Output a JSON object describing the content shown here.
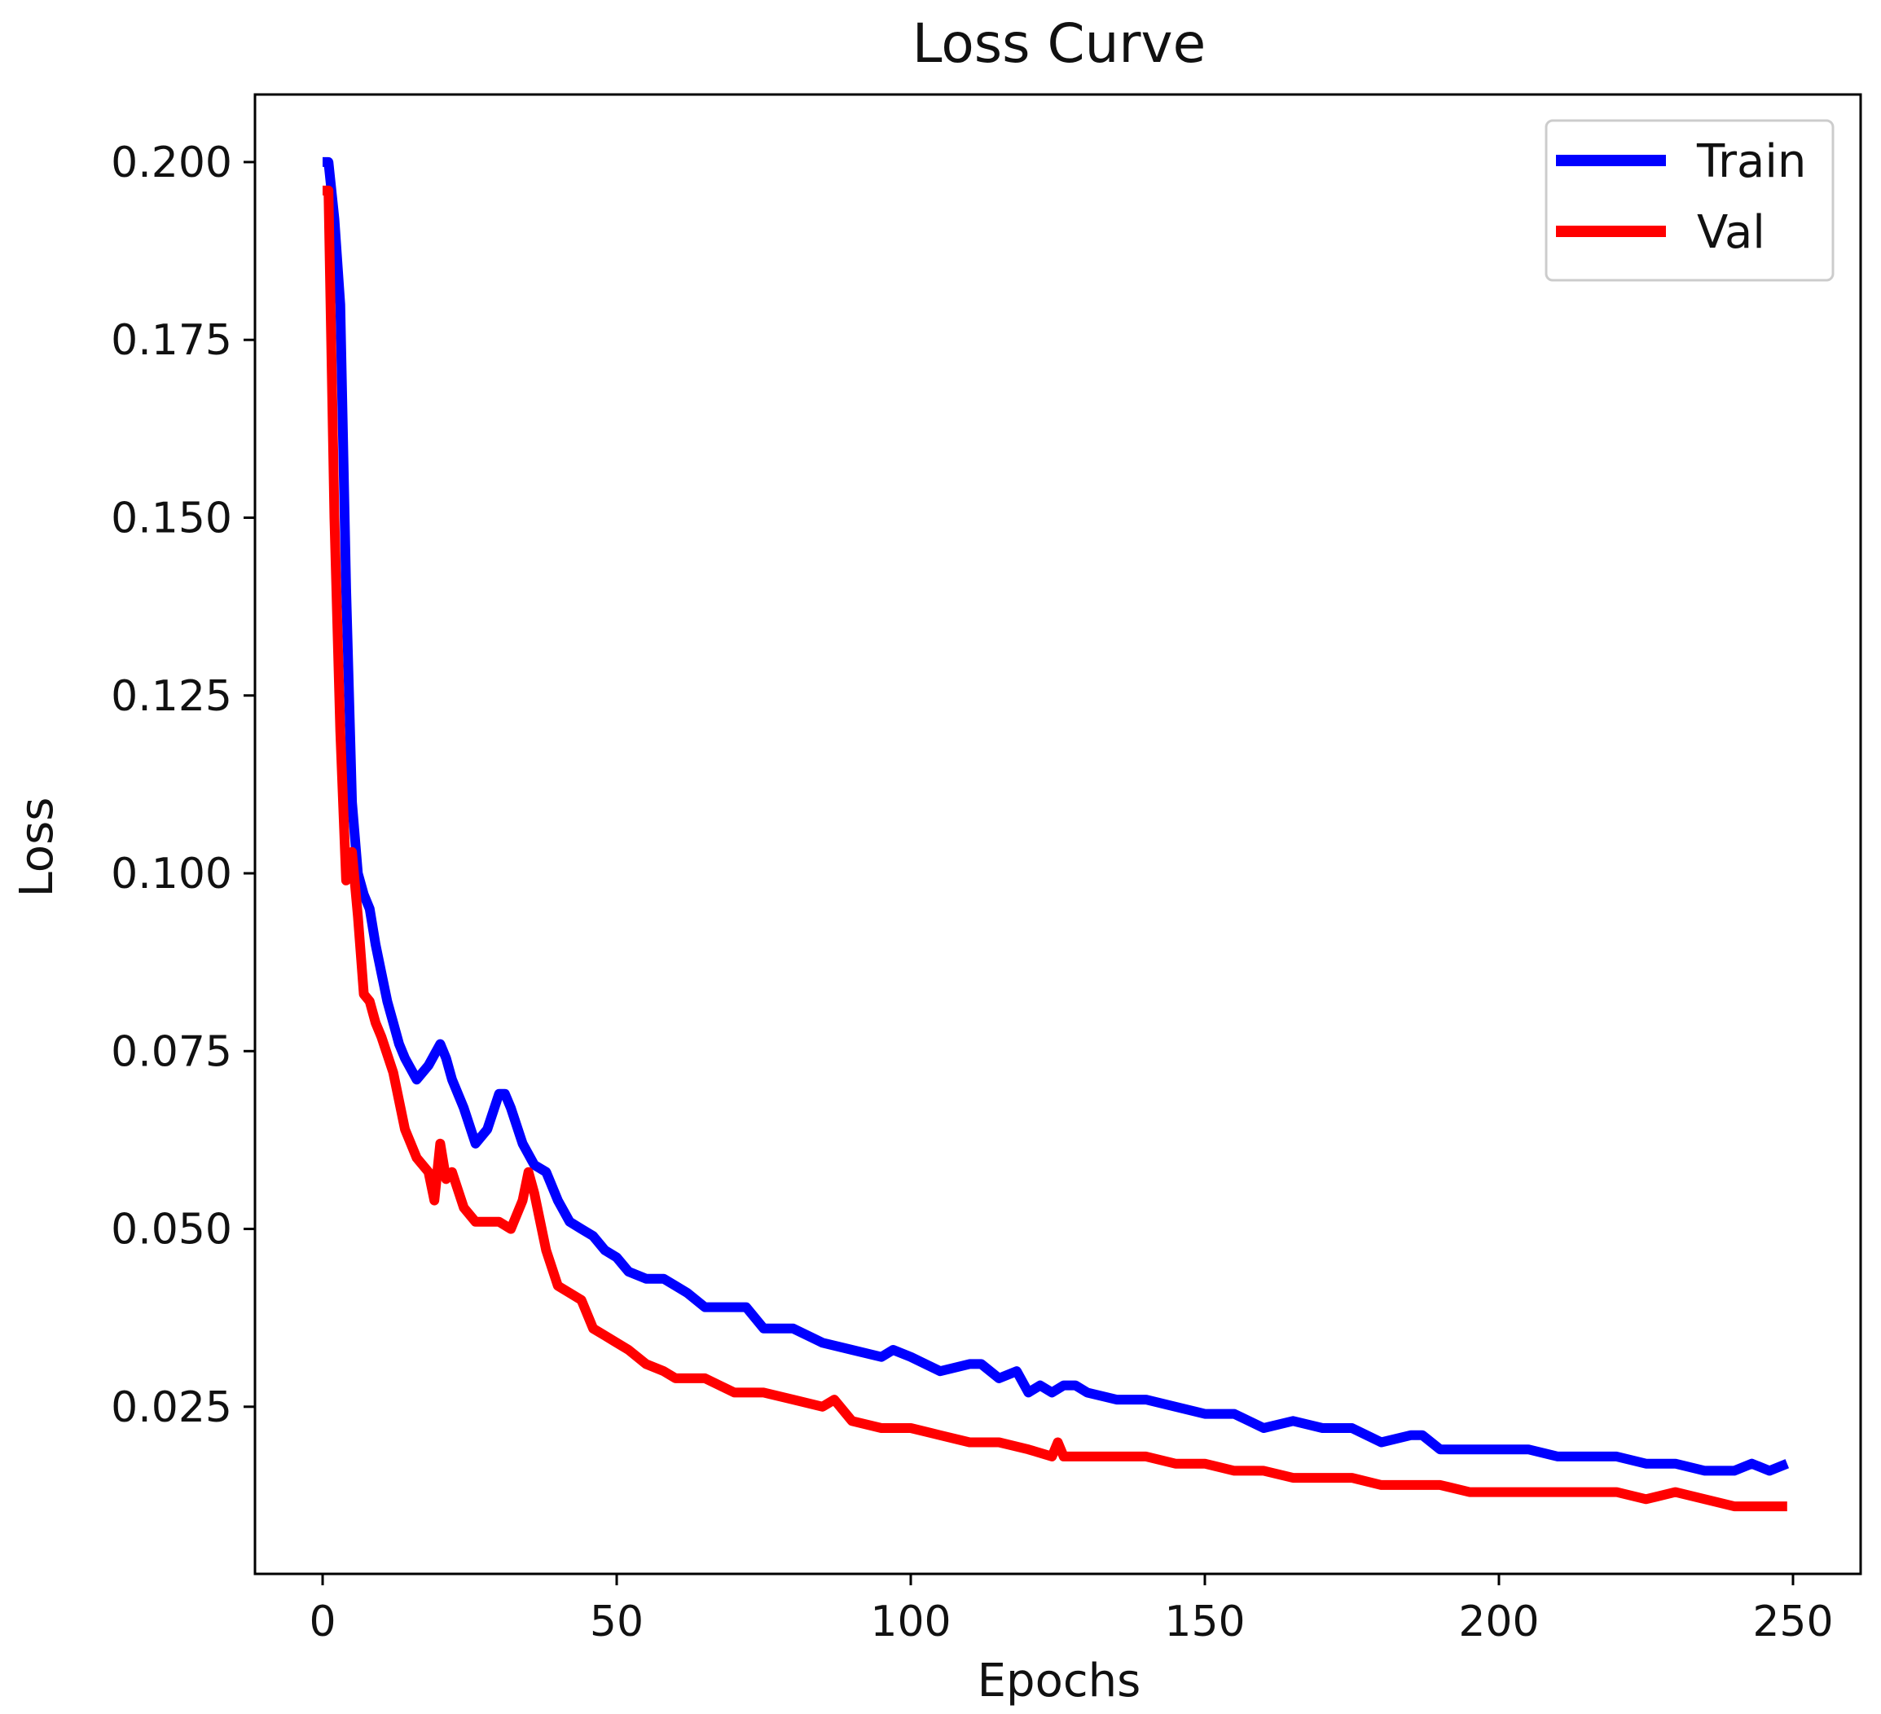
{
  "chart_data": {
    "type": "line",
    "title": "Loss Curve",
    "xlabel": "Epochs",
    "ylabel": "Loss",
    "xlim": [
      -11.5,
      261.5
    ],
    "ylim": [
      0.0015,
      0.2095
    ],
    "xticks": [
      0,
      50,
      100,
      150,
      200,
      250
    ],
    "xtick_labels": [
      "0",
      "50",
      "100",
      "150",
      "200",
      "250"
    ],
    "yticks": [
      0.025,
      0.05,
      0.075,
      0.1,
      0.125,
      0.15,
      0.175,
      0.2
    ],
    "ytick_labels": [
      "0.025",
      "0.050",
      "0.075",
      "0.100",
      "0.125",
      "0.150",
      "0.175",
      "0.200"
    ],
    "grid": false,
    "legend": {
      "position": "top-right"
    },
    "series": [
      {
        "name": "Train",
        "color": "#0000ff",
        "x": [
          0,
          1,
          2,
          3,
          4,
          5,
          6,
          7,
          8,
          9,
          10,
          11,
          12,
          13,
          14,
          16,
          18,
          20,
          21,
          22,
          24,
          26,
          28,
          30,
          31,
          32,
          34,
          36,
          38,
          40,
          42,
          44,
          46,
          48,
          50,
          52,
          55,
          58,
          60,
          62,
          65,
          68,
          70,
          72,
          75,
          78,
          80,
          85,
          90,
          95,
          97,
          100,
          105,
          110,
          112,
          115,
          118,
          120,
          122,
          124,
          126,
          128,
          130,
          135,
          140,
          145,
          150,
          155,
          160,
          165,
          170,
          175,
          180,
          185,
          187,
          190,
          195,
          200,
          205,
          210,
          215,
          220,
          225,
          230,
          235,
          240,
          243,
          246,
          249
        ],
        "y": [
          0.2,
          0.2,
          0.192,
          0.18,
          0.14,
          0.11,
          0.1,
          0.097,
          0.095,
          0.09,
          0.086,
          0.082,
          0.079,
          0.076,
          0.074,
          0.071,
          0.073,
          0.076,
          0.074,
          0.071,
          0.067,
          0.062,
          0.064,
          0.069,
          0.069,
          0.067,
          0.062,
          0.059,
          0.058,
          0.054,
          0.051,
          0.05,
          0.049,
          0.047,
          0.046,
          0.044,
          0.043,
          0.043,
          0.042,
          0.041,
          0.039,
          0.039,
          0.039,
          0.039,
          0.036,
          0.036,
          0.036,
          0.034,
          0.033,
          0.032,
          0.033,
          0.032,
          0.03,
          0.031,
          0.031,
          0.029,
          0.03,
          0.027,
          0.028,
          0.027,
          0.028,
          0.028,
          0.027,
          0.026,
          0.026,
          0.025,
          0.024,
          0.024,
          0.022,
          0.023,
          0.022,
          0.022,
          0.02,
          0.021,
          0.021,
          0.019,
          0.019,
          0.019,
          0.019,
          0.018,
          0.018,
          0.018,
          0.017,
          0.017,
          0.016,
          0.016,
          0.017,
          0.016,
          0.017
        ]
      },
      {
        "name": "Val",
        "color": "#ff0000",
        "x": [
          0,
          1,
          2,
          3,
          4,
          5,
          6,
          7,
          8,
          9,
          10,
          12,
          14,
          16,
          18,
          19,
          20,
          21,
          22,
          24,
          26,
          28,
          30,
          32,
          34,
          35,
          36,
          38,
          40,
          42,
          44,
          46,
          48,
          50,
          52,
          55,
          58,
          60,
          65,
          70,
          75,
          80,
          85,
          87,
          90,
          95,
          100,
          105,
          110,
          115,
          120,
          124,
          125,
          126,
          130,
          135,
          140,
          145,
          150,
          155,
          160,
          165,
          170,
          175,
          180,
          185,
          190,
          195,
          200,
          205,
          210,
          215,
          220,
          225,
          230,
          235,
          240,
          245,
          249
        ],
        "y": [
          0.196,
          0.196,
          0.15,
          0.12,
          0.099,
          0.103,
          0.094,
          0.083,
          0.082,
          0.079,
          0.077,
          0.072,
          0.064,
          0.06,
          0.058,
          0.054,
          0.062,
          0.057,
          0.058,
          0.053,
          0.051,
          0.051,
          0.051,
          0.05,
          0.054,
          0.058,
          0.055,
          0.047,
          0.042,
          0.041,
          0.04,
          0.036,
          0.035,
          0.034,
          0.033,
          0.031,
          0.03,
          0.029,
          0.029,
          0.027,
          0.027,
          0.026,
          0.025,
          0.026,
          0.023,
          0.022,
          0.022,
          0.021,
          0.02,
          0.02,
          0.019,
          0.018,
          0.02,
          0.018,
          0.018,
          0.018,
          0.018,
          0.017,
          0.017,
          0.016,
          0.016,
          0.015,
          0.015,
          0.015,
          0.014,
          0.014,
          0.014,
          0.013,
          0.013,
          0.013,
          0.013,
          0.013,
          0.013,
          0.012,
          0.013,
          0.012,
          0.011,
          0.011,
          0.011
        ]
      }
    ]
  }
}
